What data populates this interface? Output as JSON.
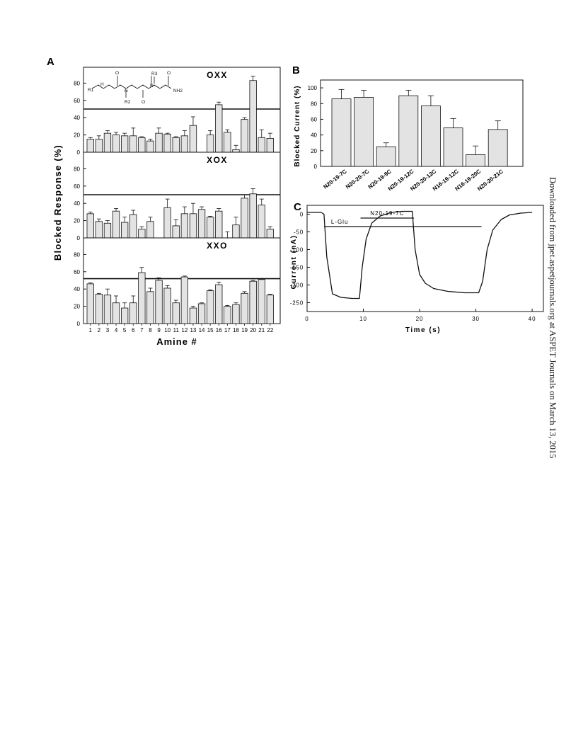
{
  "side_note": "Downloaded from jpet.aspetjournals.org at ASPET Journals on March 13, 2015",
  "chemical_structure_labels": {
    "r1": "R1",
    "r2": "R2",
    "r3": "R3",
    "nh": "H",
    "n": "N",
    "o": "O",
    "nh2": "NH2"
  },
  "chart_data": [
    {
      "id": "A",
      "panel_label": "A",
      "type": "bar",
      "ylabel": "Blocked Response (%)",
      "xlabel": "Amine #",
      "categories": [
        "1",
        "2",
        "3",
        "4",
        "5",
        "6",
        "7",
        "8",
        "9",
        "10",
        "11",
        "12",
        "13",
        "14",
        "15",
        "16",
        "17",
        "18",
        "19",
        "20",
        "21",
        "22"
      ],
      "subpanels": [
        {
          "name": "OXX",
          "ylim": [
            0,
            100
          ],
          "yticks": [
            0,
            20,
            40,
            60,
            80
          ],
          "reference_line": 50,
          "values": [
            15,
            15,
            22,
            20,
            19,
            19,
            17,
            13,
            22,
            21,
            17,
            19,
            31,
            null,
            20,
            55,
            23,
            3,
            38,
            83,
            17,
            16
          ],
          "errors": [
            2,
            4,
            3,
            3,
            3,
            9,
            1,
            2,
            6,
            1,
            1,
            6,
            10,
            null,
            5,
            3,
            3,
            5,
            2,
            5,
            9,
            6
          ]
        },
        {
          "name": "XOX",
          "ylim": [
            0,
            100
          ],
          "yticks": [
            0,
            20,
            40,
            60,
            80
          ],
          "reference_line": 50,
          "values": [
            28,
            19,
            17,
            31,
            18,
            27,
            10,
            19,
            null,
            35,
            14,
            28,
            28,
            33,
            24,
            31,
            0,
            15,
            46,
            51,
            38,
            10
          ],
          "errors": [
            2,
            3,
            3,
            3,
            6,
            5,
            3,
            5,
            null,
            10,
            7,
            8,
            12,
            3,
            1,
            3,
            7,
            9,
            4,
            6,
            7,
            3
          ]
        },
        {
          "name": "XXO",
          "ylim": [
            0,
            100
          ],
          "yticks": [
            0,
            20,
            40,
            60,
            80
          ],
          "reference_line": 52,
          "values": [
            46,
            34,
            33,
            24,
            18,
            24,
            59,
            37,
            50,
            41,
            24,
            54,
            18,
            23,
            38,
            45,
            20,
            22,
            35,
            49,
            51,
            33
          ],
          "errors": [
            1,
            1,
            7,
            8,
            6,
            8,
            6,
            4,
            3,
            3,
            3,
            1,
            2,
            1,
            1,
            3,
            1,
            2,
            2,
            1,
            1,
            1
          ]
        }
      ]
    },
    {
      "id": "B",
      "panel_label": "B",
      "type": "bar",
      "ylabel": "Blocked Current (%)",
      "ylim": [
        0,
        110
      ],
      "yticks": [
        0,
        20,
        40,
        60,
        80,
        100
      ],
      "categories": [
        "N20-19-7C",
        "N20-20-7C",
        "N20-19-9C",
        "N20-19-12C",
        "N20-20-12C",
        "N16-19-12C",
        "N16-19-20C",
        "N20-20-21C"
      ],
      "values": [
        86,
        88,
        25,
        90,
        77,
        49,
        15,
        47
      ],
      "errors": [
        12,
        9,
        5,
        7,
        13,
        12,
        11,
        11
      ]
    },
    {
      "id": "C",
      "panel_label": "C",
      "type": "line",
      "xlabel": "Time (s)",
      "ylabel": "Current (nA)",
      "xlim": [
        0,
        42
      ],
      "ylim": [
        -275,
        25
      ],
      "xticks": [
        0,
        10,
        20,
        30,
        40
      ],
      "yticks": [
        0,
        -50,
        -100,
        -150,
        -200,
        -250
      ],
      "annotations": [
        {
          "label": "L-Glu",
          "x_start": 3,
          "x_end": 31,
          "level": 1
        },
        {
          "label": "N20-19-7C",
          "x_start": 9.5,
          "x_end": 19,
          "level": 2
        }
      ],
      "series": [
        {
          "x": [
            0,
            2.5,
            3.0,
            3.5,
            4.5,
            6,
            8,
            9.3,
            9.8,
            10.5,
            11.5,
            13,
            15,
            17,
            18.7,
            19.2,
            20,
            21,
            22.5,
            25,
            28,
            30.5,
            31.2,
            32,
            33,
            34.5,
            36,
            38,
            40
          ],
          "y": [
            5,
            5,
            0,
            -120,
            -225,
            -235,
            -238,
            -238,
            -150,
            -70,
            -25,
            -5,
            5,
            8,
            8,
            -100,
            -170,
            -195,
            -210,
            -218,
            -222,
            -222,
            -190,
            -100,
            -45,
            -15,
            -2,
            3,
            5
          ]
        }
      ]
    }
  ]
}
